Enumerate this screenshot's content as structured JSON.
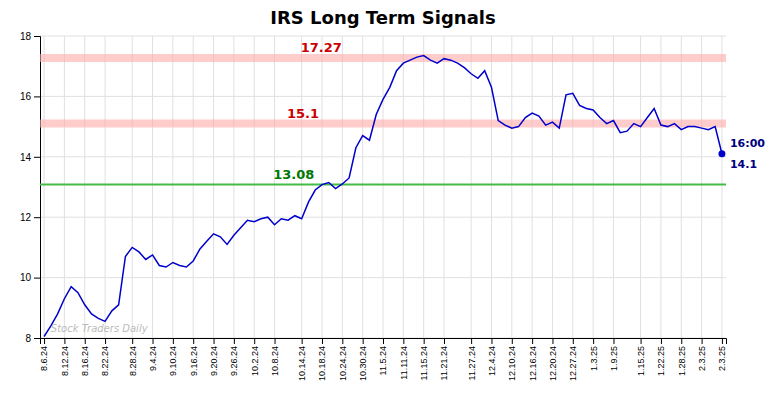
{
  "chart_data": {
    "type": "line",
    "title": "IRS Long Term Signals",
    "color": "#0000cc",
    "grid": true,
    "ylim": [
      8,
      18
    ],
    "yticks": [
      8,
      10,
      12,
      14,
      16,
      18
    ],
    "categories": [
      "8.6.24",
      null,
      null,
      "8.12.24",
      null,
      null,
      "8.16.24",
      null,
      null,
      "8.22.24",
      null,
      null,
      null,
      "8.28.24",
      null,
      null,
      "9.4.24",
      null,
      null,
      "9.10.24",
      null,
      null,
      "9.16.24",
      null,
      null,
      "9.20.24",
      null,
      null,
      "9.26.24",
      null,
      null,
      "10.2.24",
      null,
      null,
      "10.8.24",
      null,
      null,
      null,
      "10.14.24",
      null,
      null,
      "10.18.24",
      null,
      null,
      "10.24.24",
      null,
      null,
      "10.30.24",
      null,
      null,
      "11.5.24",
      null,
      null,
      "11.11.24",
      null,
      null,
      "11.15.24",
      null,
      null,
      "11.21.24",
      null,
      null,
      null,
      "11.27.24",
      null,
      null,
      "12.4.24",
      null,
      null,
      "12.10.24",
      null,
      null,
      "12.16.24",
      null,
      null,
      "12.20.24",
      null,
      null,
      "12.27.24",
      null,
      null,
      "1.3.25",
      null,
      null,
      "1.9.25",
      null,
      null,
      null,
      "1.15.25",
      null,
      null,
      "1.22.25",
      null,
      null,
      "1.28.25",
      null,
      null,
      "2.3.25",
      null,
      null,
      "2.3.25"
    ],
    "values": [
      8.05,
      8.4,
      8.8,
      9.3,
      9.7,
      9.5,
      9.1,
      8.8,
      8.65,
      8.55,
      8.9,
      9.1,
      10.7,
      11.0,
      10.85,
      10.6,
      10.75,
      10.4,
      10.35,
      10.5,
      10.4,
      10.35,
      10.55,
      10.95,
      11.2,
      11.45,
      11.35,
      11.1,
      11.4,
      11.65,
      11.9,
      11.85,
      11.95,
      12.0,
      11.75,
      11.95,
      11.9,
      12.05,
      11.95,
      12.5,
      12.9,
      13.08,
      13.15,
      12.95,
      13.1,
      13.3,
      14.3,
      14.7,
      14.55,
      15.4,
      15.9,
      16.3,
      16.85,
      17.1,
      17.2,
      17.3,
      17.35,
      17.2,
      17.1,
      17.25,
      17.2,
      17.1,
      16.95,
      16.75,
      16.6,
      16.85,
      16.3,
      15.2,
      15.05,
      14.95,
      15.0,
      15.3,
      15.45,
      15.35,
      15.05,
      15.15,
      14.95,
      16.05,
      16.1,
      15.7,
      15.6,
      15.55,
      15.3,
      15.1,
      15.2,
      14.8,
      14.85,
      15.1,
      15.0,
      15.3,
      15.6,
      15.05,
      15.0,
      15.1,
      14.9,
      15.0,
      15.0,
      14.95,
      14.9,
      15.0,
      14.1
    ],
    "reference_lines": [
      {
        "value": 17.27,
        "color": "#ffaaaa",
        "label_color": "#cc0000"
      },
      {
        "value": 15.1,
        "color": "#ffaaaa",
        "label_color": "#cc0000"
      },
      {
        "value": 13.08,
        "color": "#44bb44",
        "label_color": "#007700"
      }
    ],
    "annotations": [
      {
        "text": "16:00",
        "color": "#000080"
      },
      {
        "text": "Stock Traders Daily",
        "color": "#bbbbbb"
      }
    ]
  }
}
